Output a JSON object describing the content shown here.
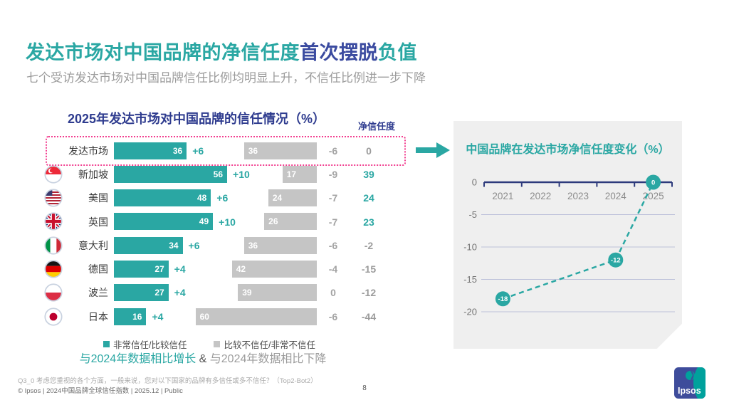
{
  "slide": {
    "title_parts": [
      {
        "text": "发达市场对中国品牌的净信任度",
        "color": "#2AA7A3"
      },
      {
        "text": "首次摆脱",
        "color": "#3B4BA0"
      },
      {
        "text": "负值",
        "color": "#2AA7A3"
      }
    ],
    "subtitle": "七个受访发达市场对中国品牌信任比例均明显上升，不信任比例进一步下降",
    "footnote": "Q3_0 考虑您重视的各个方面，一般来说，您对以下国家的品牌有多信任或多不信任？（Top2-Bot2）",
    "copyright": "© Ipsos | 2024中国品牌全球信任指数 | 2025.12 | Public",
    "page_number": "8",
    "logo_text": "Ipsos"
  },
  "trust_table": {
    "net_header": "净信任度",
    "legend": [
      {
        "label": "非常信任/比较信任",
        "color": "#2AA7A3"
      },
      {
        "label": "比较不信任/非常不信任",
        "color": "#C5C5C5"
      }
    ],
    "compare_note": {
      "increase": "与2024年数据相比增长",
      "amp": "&",
      "decrease": "与2024年数据相比下降"
    }
  },
  "chart_data": [
    {
      "type": "bar",
      "orientation": "horizontal-diverging",
      "title": "2025年发达市场对中国品牌的信任情况（%）",
      "categories": [
        "发达市场",
        "新加坡",
        "美国",
        "英国",
        "意大利",
        "德国",
        "波兰",
        "日本"
      ],
      "flags": [
        "none",
        "singapore",
        "usa",
        "uk",
        "italy",
        "germany",
        "poland",
        "japan"
      ],
      "series": [
        {
          "name": "非常信任/比较信任",
          "color": "#2AA7A3",
          "values": [
            36,
            56,
            48,
            49,
            34,
            27,
            27,
            16
          ],
          "changes_vs_2024": [
            "+6",
            "+10",
            "+6",
            "+10",
            "+6",
            "+4",
            "+4",
            "+4"
          ]
        },
        {
          "name": "比较不信任/非常不信任",
          "color": "#C5C5C5",
          "values": [
            36,
            17,
            24,
            26,
            36,
            42,
            39,
            60
          ],
          "changes_vs_2024": [
            "-6",
            "-9",
            "-7",
            "-7",
            "-6",
            "-4",
            "0",
            "-6"
          ]
        }
      ],
      "net_values": [
        0,
        39,
        24,
        23,
        -2,
        -15,
        -12,
        -44
      ],
      "highlighted_row": 0,
      "value_unit": "%"
    },
    {
      "type": "line",
      "title": "中国品牌在发达市场净信任度变化（%）",
      "x_categories": [
        "2021",
        "2022",
        "2023",
        "2024",
        "2025"
      ],
      "points": [
        {
          "x": "2021",
          "y": -18
        },
        {
          "x": "2024",
          "y": -12
        },
        {
          "x": "2025",
          "y": 0
        }
      ],
      "yticks": [
        0,
        -5,
        -10,
        -15,
        -20
      ],
      "ylim": [
        -20,
        0
      ],
      "line_style": "dashed",
      "color": "#2AA7A3",
      "grid": true,
      "legend_position": "none"
    }
  ],
  "colors": {
    "teal": "#2AA7A3",
    "navy_title": "#3B4BA0",
    "chart_title_navy": "#2F3C8F",
    "gray_bar": "#C5C5C5",
    "gray_text": "#9C9C9C",
    "highlight_pink": "#F23E8F",
    "card_bg": "#EFEFEF",
    "gridline": "#BCC0DA",
    "axis_navy": "#2D3A7C"
  }
}
